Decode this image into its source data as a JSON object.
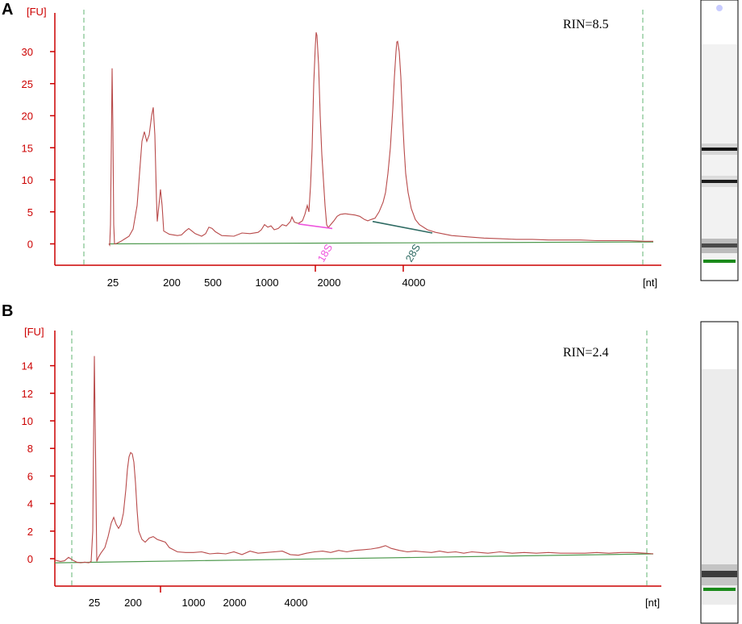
{
  "colors": {
    "axis": "#cc0000",
    "trace": "#b84a4a",
    "baseline": "#4f9a4f",
    "marker_line": "#7cc08a",
    "peak_18s": "#ee55dd",
    "peak_28s": "#2f6b63",
    "gel_marker": "#1a8a1a"
  },
  "chart_data": [
    {
      "panel": "A",
      "type": "line",
      "y_unit": "[FU]",
      "x_unit": "[nt]",
      "annotation": "RIN=8.5",
      "ylim": [
        -4,
        36
      ],
      "y_ticks": [
        0,
        5,
        10,
        15,
        20,
        25,
        30
      ],
      "x_tick_labels": [
        "25",
        "200",
        "500",
        "1000",
        "2000",
        "4000"
      ],
      "peak_labels": [
        {
          "label": "18S",
          "color": "#ee55dd"
        },
        {
          "label": "28S",
          "color": "#2f6b63"
        }
      ],
      "trace": [
        [
          135,
          0
        ],
        [
          136,
          -0.2
        ],
        [
          137,
          3
        ],
        [
          138,
          15
        ],
        [
          139,
          27.4
        ],
        [
          140,
          18
        ],
        [
          141,
          3
        ],
        [
          142,
          0
        ],
        [
          143,
          0
        ],
        [
          145,
          0.1
        ],
        [
          150,
          0.4
        ],
        [
          155,
          0.8
        ],
        [
          160,
          1.2
        ],
        [
          165,
          2.3
        ],
        [
          170,
          6
        ],
        [
          173,
          11
        ],
        [
          176,
          16
        ],
        [
          179,
          17.5
        ],
        [
          182,
          16
        ],
        [
          185,
          17
        ],
        [
          188,
          20
        ],
        [
          190,
          21.3
        ],
        [
          192,
          17
        ],
        [
          194,
          7
        ],
        [
          195,
          3.5
        ],
        [
          197,
          6
        ],
        [
          199,
          8.5
        ],
        [
          201,
          6
        ],
        [
          203,
          2
        ],
        [
          210,
          1.5
        ],
        [
          220,
          1.3
        ],
        [
          225,
          1.4
        ],
        [
          230,
          2
        ],
        [
          234,
          2.4
        ],
        [
          238,
          2
        ],
        [
          242,
          1.6
        ],
        [
          250,
          1.2
        ],
        [
          255,
          1.6
        ],
        [
          259,
          2.6
        ],
        [
          263,
          2.4
        ],
        [
          267,
          1.9
        ],
        [
          275,
          1.3
        ],
        [
          290,
          1.2
        ],
        [
          300,
          1.7
        ],
        [
          310,
          1.6
        ],
        [
          320,
          1.8
        ],
        [
          324,
          2.2
        ],
        [
          328,
          3
        ],
        [
          332,
          2.6
        ],
        [
          336,
          2.8
        ],
        [
          340,
          2.2
        ],
        [
          345,
          2.4
        ],
        [
          350,
          3
        ],
        [
          355,
          2.8
        ],
        [
          360,
          3.5
        ],
        [
          362,
          4.2
        ],
        [
          365,
          3.4
        ],
        [
          370,
          3.2
        ],
        [
          375,
          3.6
        ],
        [
          378,
          4.6
        ],
        [
          381,
          6
        ],
        [
          383,
          5
        ],
        [
          385,
          9
        ],
        [
          387,
          15
        ],
        [
          389,
          25
        ],
        [
          391,
          31
        ],
        [
          392,
          33
        ],
        [
          393,
          32.5
        ],
        [
          395,
          28
        ],
        [
          397,
          20
        ],
        [
          399,
          14
        ],
        [
          401,
          10
        ],
        [
          403,
          6
        ],
        [
          405,
          3
        ],
        [
          407,
          2.5
        ],
        [
          410,
          3
        ],
        [
          414,
          3.6
        ],
        [
          418,
          4.3
        ],
        [
          422,
          4.6
        ],
        [
          428,
          4.7
        ],
        [
          434,
          4.6
        ],
        [
          440,
          4.5
        ],
        [
          446,
          4.3
        ],
        [
          452,
          3.8
        ],
        [
          456,
          3.6
        ],
        [
          460,
          3.8
        ],
        [
          465,
          4
        ],
        [
          470,
          5
        ],
        [
          475,
          6.5
        ],
        [
          478,
          8
        ],
        [
          481,
          11
        ],
        [
          484,
          15
        ],
        [
          487,
          21
        ],
        [
          489,
          26
        ],
        [
          491,
          30
        ],
        [
          492,
          31.5
        ],
        [
          493,
          31.6
        ],
        [
          495,
          30
        ],
        [
          497,
          26
        ],
        [
          499,
          20
        ],
        [
          501,
          15
        ],
        [
          503,
          11
        ],
        [
          506,
          8
        ],
        [
          510,
          5.5
        ],
        [
          515,
          3.8
        ],
        [
          520,
          3
        ],
        [
          530,
          2.2
        ],
        [
          540,
          1.8
        ],
        [
          560,
          1.3
        ],
        [
          580,
          1.1
        ],
        [
          600,
          0.9
        ],
        [
          620,
          0.8
        ],
        [
          640,
          0.7
        ],
        [
          660,
          0.7
        ],
        [
          680,
          0.6
        ],
        [
          700,
          0.6
        ],
        [
          720,
          0.6
        ],
        [
          740,
          0.5
        ],
        [
          760,
          0.5
        ],
        [
          780,
          0.5
        ],
        [
          800,
          0.4
        ],
        [
          810,
          0.4
        ]
      ],
      "baseline": [
        [
          135,
          0
        ],
        [
          810,
          0.3
        ]
      ],
      "segment_18s": [
        [
          370,
          3.1
        ],
        [
          412,
          2.4
        ]
      ],
      "segment_28s": [
        [
          462,
          3.5
        ],
        [
          536,
          1.7
        ]
      ]
    },
    {
      "panel": "B",
      "type": "line",
      "y_unit": "[FU]",
      "x_unit": "[nt]",
      "annotation": "RIN=2.4",
      "ylim": [
        -1,
        16
      ],
      "y_ticks": [
        0,
        2,
        4,
        6,
        8,
        10,
        12,
        14
      ],
      "x_tick_labels": [
        "25",
        "200",
        "1000",
        "2000",
        "4000"
      ],
      "trace": [
        [
          68,
          -0.1
        ],
        [
          75,
          -0.2
        ],
        [
          80,
          -0.15
        ],
        [
          85,
          0.1
        ],
        [
          90,
          -0.1
        ],
        [
          95,
          -0.25
        ],
        [
          100,
          -0.3
        ],
        [
          105,
          -0.25
        ],
        [
          110,
          -0.3
        ],
        [
          113,
          -0.2
        ],
        [
          115,
          2
        ],
        [
          117,
          14.7
        ],
        [
          119,
          5
        ],
        [
          120,
          -0.2
        ],
        [
          122,
          0.1
        ],
        [
          125,
          0.4
        ],
        [
          130,
          0.8
        ],
        [
          134,
          1.6
        ],
        [
          138,
          2.6
        ],
        [
          141,
          3
        ],
        [
          144,
          2.5
        ],
        [
          147,
          2.2
        ],
        [
          150,
          2.5
        ],
        [
          153,
          3.3
        ],
        [
          156,
          5
        ],
        [
          158,
          6.5
        ],
        [
          160,
          7.4
        ],
        [
          162,
          7.7
        ],
        [
          164,
          7.6
        ],
        [
          166,
          7
        ],
        [
          168,
          5.5
        ],
        [
          170,
          3.5
        ],
        [
          172,
          2
        ],
        [
          176,
          1.4
        ],
        [
          180,
          1.2
        ],
        [
          185,
          1.5
        ],
        [
          190,
          1.6
        ],
        [
          195,
          1.4
        ],
        [
          200,
          1.3
        ],
        [
          205,
          1.2
        ],
        [
          210,
          0.8
        ],
        [
          220,
          0.5
        ],
        [
          230,
          0.45
        ],
        [
          240,
          0.45
        ],
        [
          250,
          0.5
        ],
        [
          260,
          0.35
        ],
        [
          270,
          0.4
        ],
        [
          280,
          0.35
        ],
        [
          290,
          0.5
        ],
        [
          300,
          0.3
        ],
        [
          310,
          0.55
        ],
        [
          320,
          0.4
        ],
        [
          330,
          0.45
        ],
        [
          340,
          0.5
        ],
        [
          350,
          0.55
        ],
        [
          360,
          0.3
        ],
        [
          370,
          0.25
        ],
        [
          380,
          0.4
        ],
        [
          390,
          0.5
        ],
        [
          400,
          0.55
        ],
        [
          410,
          0.45
        ],
        [
          420,
          0.6
        ],
        [
          430,
          0.5
        ],
        [
          440,
          0.6
        ],
        [
          450,
          0.65
        ],
        [
          460,
          0.7
        ],
        [
          470,
          0.8
        ],
        [
          478,
          0.95
        ],
        [
          485,
          0.75
        ],
        [
          495,
          0.6
        ],
        [
          505,
          0.5
        ],
        [
          515,
          0.55
        ],
        [
          525,
          0.5
        ],
        [
          535,
          0.45
        ],
        [
          545,
          0.55
        ],
        [
          555,
          0.45
        ],
        [
          565,
          0.5
        ],
        [
          575,
          0.4
        ],
        [
          585,
          0.5
        ],
        [
          595,
          0.45
        ],
        [
          605,
          0.4
        ],
        [
          620,
          0.5
        ],
        [
          635,
          0.4
        ],
        [
          650,
          0.45
        ],
        [
          665,
          0.4
        ],
        [
          680,
          0.45
        ],
        [
          695,
          0.4
        ],
        [
          710,
          0.4
        ],
        [
          725,
          0.4
        ],
        [
          740,
          0.45
        ],
        [
          755,
          0.4
        ],
        [
          770,
          0.45
        ],
        [
          785,
          0.45
        ],
        [
          800,
          0.4
        ],
        [
          810,
          0.35
        ]
      ],
      "baseline": [
        [
          68,
          -0.3
        ],
        [
          810,
          0.35
        ]
      ]
    }
  ]
}
